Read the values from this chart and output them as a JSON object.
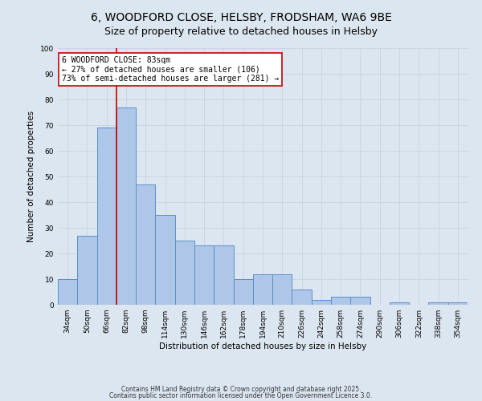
{
  "title_line1": "6, WOODFORD CLOSE, HELSBY, FRODSHAM, WA6 9BE",
  "title_line2": "Size of property relative to detached houses in Helsby",
  "xlabel": "Distribution of detached houses by size in Helsby",
  "ylabel": "Number of detached properties",
  "categories": [
    "34sqm",
    "50sqm",
    "66sqm",
    "82sqm",
    "98sqm",
    "114sqm",
    "130sqm",
    "146sqm",
    "162sqm",
    "178sqm",
    "194sqm",
    "210sqm",
    "226sqm",
    "242sqm",
    "258sqm",
    "274sqm",
    "290sqm",
    "306sqm",
    "322sqm",
    "338sqm",
    "354sqm"
  ],
  "values": [
    10,
    27,
    69,
    77,
    47,
    35,
    25,
    23,
    23,
    10,
    12,
    12,
    6,
    2,
    3,
    3,
    0,
    1,
    0,
    1,
    1
  ],
  "bar_color": "#aec6e8",
  "bar_edge_color": "#5b8fc9",
  "bar_width": 1.0,
  "red_line_color": "#cc0000",
  "annotation_text": "6 WOODFORD CLOSE: 83sqm\n← 27% of detached houses are smaller (106)\n73% of semi-detached houses are larger (281) →",
  "annotation_box_color": "#ffffff",
  "annotation_box_edge": "#cc0000",
  "ylim": [
    0,
    100
  ],
  "yticks": [
    0,
    10,
    20,
    30,
    40,
    50,
    60,
    70,
    80,
    90,
    100
  ],
  "grid_color": "#c8d4e0",
  "bg_color": "#dce6f0",
  "footer_line1": "Contains HM Land Registry data © Crown copyright and database right 2025.",
  "footer_line2": "Contains public sector information licensed under the Open Government Licence 3.0.",
  "title_fontsize": 10,
  "subtitle_fontsize": 9,
  "axis_label_fontsize": 7.5,
  "tick_fontsize": 6.5,
  "annotation_fontsize": 7,
  "footer_fontsize": 5.5
}
